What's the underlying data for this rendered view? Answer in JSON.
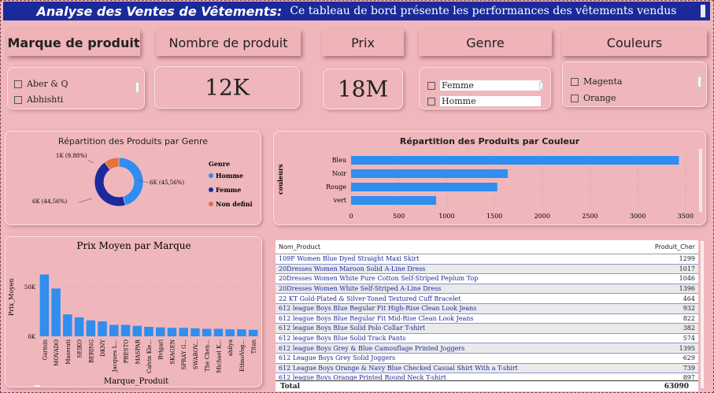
{
  "header": {
    "title": "Analyse des Ventes de Vêtements:",
    "subtitle": "Ce tableau de bord présente les performances des vêtements vendus"
  },
  "filters": {
    "brand_label": "Marque de produit",
    "count_label": "Nombre de produit",
    "price_label": "Prix",
    "gender_label": "Genre",
    "color_label": "Couleurs"
  },
  "slicers": {
    "brand": [
      "Aber & Q",
      "Abhishti"
    ],
    "gender": [
      "Femme",
      "Homme"
    ],
    "color": [
      "Magenta",
      "Orange"
    ]
  },
  "kpis": {
    "count": "12K",
    "price": "18M"
  },
  "colors": {
    "primary": "#2f8ef0",
    "navy": "#1b2a9a",
    "orange": "#e8703a",
    "header": "#1b2a9a"
  },
  "donut": {
    "title": "Répartition des Produits par Genre",
    "legend_title": "Genre",
    "labels": {
      "homme": "6K (45,56%)",
      "femme": "6K (44,56%)",
      "nondef": "1K (9,88%)"
    }
  },
  "couleur": {
    "title": "Répartition des Produits par Couleur",
    "ylabel": "couleurs"
  },
  "prix": {
    "title": "Prix Moyen par Marque",
    "xlabel": "Marque_Produit",
    "ylabel": "Prix_Moyen"
  },
  "chart_data": [
    {
      "type": "pie",
      "title": "Répartition des Produits par Genre",
      "categories": [
        "Homme",
        "Femme",
        "Non defini"
      ],
      "values": [
        45.56,
        44.56,
        9.88
      ],
      "legend": "right"
    },
    {
      "type": "bar",
      "title": "Répartition des Produits par Couleur",
      "ylabel": "couleurs",
      "categories": [
        "Bleu",
        "Noir",
        "Rouge",
        "vert"
      ],
      "values": [
        3430,
        1640,
        1530,
        890
      ],
      "ticks": [
        "0",
        "500",
        "1000",
        "1500",
        "2000",
        "2500",
        "3000",
        "3500"
      ],
      "xlim": [
        0,
        3600
      ]
    },
    {
      "type": "bar",
      "title": "Prix Moyen par Marque",
      "xlabel": "Marque_Produit",
      "ylabel": "Prix_Moyen",
      "categories": [
        "Garmin",
        "MOVADO",
        "Maserati",
        "SEIKO",
        "BERING",
        "DKNY",
        "Jacques L...",
        "PRESTO",
        "MASPAR",
        "Calvin Kle...",
        "Bvlgari",
        "SKAGEN",
        "SPRAY G...",
        "SWAROV...",
        "The Chen...",
        "Michael K...",
        "ahilya",
        "EthnoVog...",
        "Titan"
      ],
      "values": [
        62000,
        48000,
        22000,
        19000,
        16000,
        15000,
        11500,
        11500,
        10500,
        9500,
        9000,
        8500,
        8500,
        8000,
        7500,
        7500,
        7000,
        7000,
        6500
      ],
      "ticks": [
        "0K",
        "50K"
      ],
      "ylim": [
        0,
        68000
      ]
    }
  ],
  "table": {
    "headers": [
      "Nom_Product",
      "Produit_Cher"
    ],
    "rows": [
      [
        "109F Women Blue Dyed Straight Maxi Skirt",
        "1299"
      ],
      [
        "20Dresses Women Maroon Solid A-Line Dress",
        "1017"
      ],
      [
        "20Dresses Women White Pure Cotton Self-Striped Peplum Top",
        "1046"
      ],
      [
        "20Dresses Women White Self-Striped A-Line Dress",
        "1396"
      ],
      [
        "22 KT Gold-Plated & Silver-Toned Textured Cuff Bracelet",
        "464"
      ],
      [
        "612 league Boys Blue Regular Fit High-Rise Clean Look Jeans",
        "932"
      ],
      [
        "612 league Boys Blue Regular Fit Mid-Rise Clean Look Jeans",
        "822"
      ],
      [
        "612 league Boys Blue Solid Polo Collar T-shirt",
        "382"
      ],
      [
        "612 league Boys Blue Solid Track Pants",
        "574"
      ],
      [
        "612 league Boys Grey & Blue Camouflage Printed Joggers",
        "1395"
      ],
      [
        "612 League Boys Grey Solid Joggers",
        "629"
      ],
      [
        "612 League Boys Orange & Navy Blue Checked Casual Shirt With a T-shirt",
        "739"
      ],
      [
        "612 league Boys Orange Printed Round Neck T-shirt",
        "897"
      ]
    ],
    "total_label": "Total",
    "total_value": "63090"
  }
}
